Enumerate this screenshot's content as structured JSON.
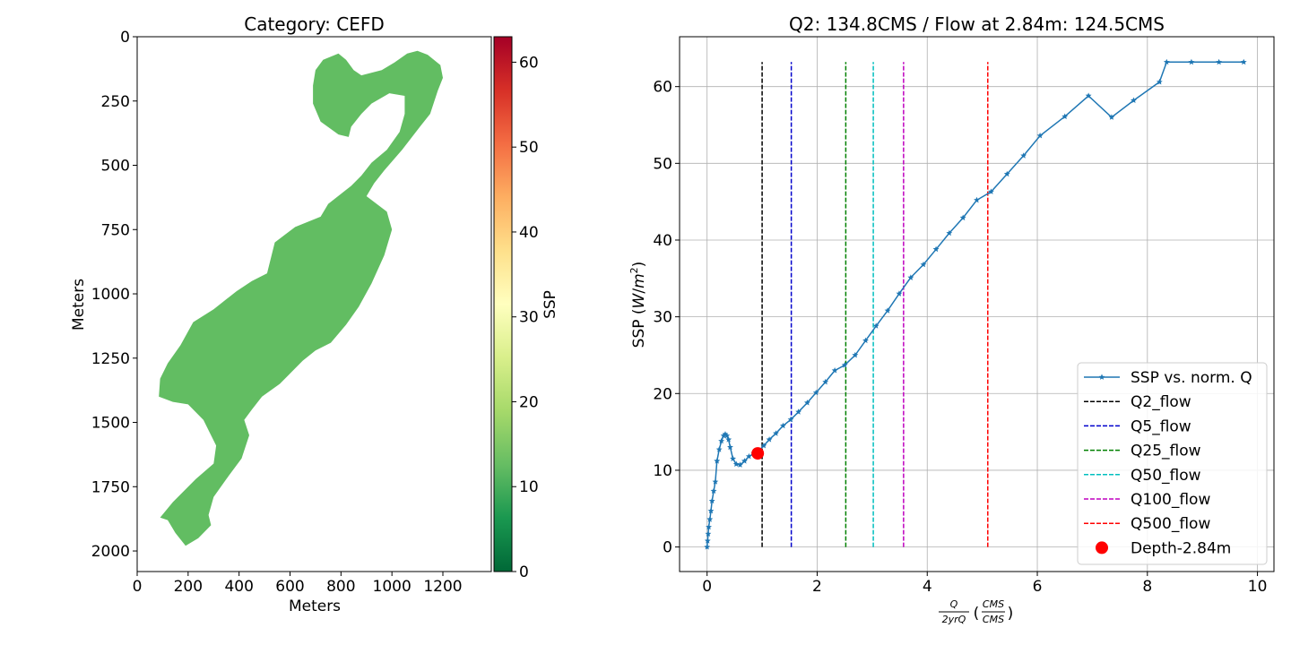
{
  "chart_data": [
    {
      "type": "heatmap",
      "title": "Category: CEFD",
      "xlabel": "Meters",
      "ylabel": "Meters",
      "xlim": [
        0,
        1390
      ],
      "ylim": [
        2080,
        0
      ],
      "xticks": [
        0,
        200,
        400,
        600,
        800,
        1000,
        1200
      ],
      "yticks": [
        0,
        250,
        500,
        750,
        1000,
        1250,
        1500,
        1750,
        2000
      ],
      "fill_color": "#62bd62",
      "fill_value_approx": 12,
      "colorbar": {
        "label": "SSP",
        "range": [
          0,
          63
        ],
        "ticks": [
          0,
          10,
          20,
          30,
          40,
          50,
          60
        ],
        "colormap": "RdYlGn_r",
        "stops": [
          "#006837",
          "#1a9850",
          "#66bd63",
          "#a6d96a",
          "#d9ef8b",
          "#ffffbf",
          "#fee08b",
          "#fdae61",
          "#f46d43",
          "#d73027",
          "#a50026"
        ]
      },
      "region_outline": [
        [
          730,
          90
        ],
        [
          790,
          65
        ],
        [
          820,
          90
        ],
        [
          850,
          130
        ],
        [
          880,
          150
        ],
        [
          960,
          130
        ],
        [
          1010,
          100
        ],
        [
          1060,
          65
        ],
        [
          1100,
          55
        ],
        [
          1140,
          70
        ],
        [
          1190,
          110
        ],
        [
          1200,
          160
        ],
        [
          1180,
          210
        ],
        [
          1150,
          300
        ],
        [
          1110,
          350
        ],
        [
          1040,
          440
        ],
        [
          970,
          520
        ],
        [
          930,
          570
        ],
        [
          900,
          620
        ],
        [
          980,
          680
        ],
        [
          1000,
          750
        ],
        [
          970,
          850
        ],
        [
          920,
          960
        ],
        [
          870,
          1050
        ],
        [
          820,
          1120
        ],
        [
          760,
          1190
        ],
        [
          700,
          1220
        ],
        [
          650,
          1260
        ],
        [
          600,
          1310
        ],
        [
          560,
          1350
        ],
        [
          490,
          1400
        ],
        [
          450,
          1450
        ],
        [
          420,
          1490
        ],
        [
          440,
          1550
        ],
        [
          410,
          1640
        ],
        [
          350,
          1720
        ],
        [
          300,
          1790
        ],
        [
          280,
          1860
        ],
        [
          290,
          1900
        ],
        [
          240,
          1950
        ],
        [
          190,
          1980
        ],
        [
          150,
          1930
        ],
        [
          120,
          1880
        ],
        [
          90,
          1870
        ],
        [
          140,
          1810
        ],
        [
          230,
          1720
        ],
        [
          300,
          1660
        ],
        [
          310,
          1590
        ],
        [
          260,
          1490
        ],
        [
          200,
          1430
        ],
        [
          140,
          1420
        ],
        [
          85,
          1400
        ],
        [
          90,
          1330
        ],
        [
          120,
          1270
        ],
        [
          170,
          1200
        ],
        [
          220,
          1110
        ],
        [
          300,
          1060
        ],
        [
          390,
          990
        ],
        [
          450,
          950
        ],
        [
          510,
          920
        ],
        [
          540,
          800
        ],
        [
          580,
          770
        ],
        [
          620,
          740
        ],
        [
          720,
          700
        ],
        [
          750,
          650
        ],
        [
          840,
          580
        ],
        [
          880,
          540
        ],
        [
          920,
          490
        ],
        [
          980,
          440
        ],
        [
          1030,
          370
        ],
        [
          1050,
          300
        ],
        [
          1050,
          230
        ],
        [
          990,
          220
        ],
        [
          920,
          260
        ],
        [
          880,
          300
        ],
        [
          840,
          350
        ],
        [
          830,
          390
        ],
        [
          790,
          380
        ],
        [
          720,
          330
        ],
        [
          690,
          260
        ],
        [
          690,
          190
        ],
        [
          700,
          130
        ]
      ]
    },
    {
      "type": "line",
      "title": "Q2: 134.8CMS / Flow at 2.84m: 124.5CMS",
      "xlabel_text": [
        "Q",
        "2yrQ",
        "(",
        "CMS",
        "CMS",
        ")"
      ],
      "ylabel": "SSP (W/m²)",
      "ylabel_parts": [
        "SSP (",
        "W",
        "/",
        "m",
        "2",
        ")"
      ],
      "xlim": [
        -0.5,
        10.3
      ],
      "ylim": [
        -3.2,
        66.5
      ],
      "xticks": [
        0,
        2,
        4,
        6,
        8,
        10
      ],
      "yticks": [
        0,
        10,
        20,
        30,
        40,
        50,
        60
      ],
      "grid": true,
      "legend_placement": "lower-right",
      "series": [
        {
          "name": "SSP vs. norm. Q",
          "color": "#1f77b4",
          "marker": "star",
          "x": [
            0.0,
            0.01,
            0.02,
            0.03,
            0.05,
            0.07,
            0.09,
            0.12,
            0.15,
            0.18,
            0.22,
            0.26,
            0.3,
            0.33,
            0.36,
            0.39,
            0.42,
            0.47,
            0.53,
            0.6,
            0.68,
            0.76,
            0.85,
            0.93,
            1.03,
            1.13,
            1.25,
            1.38,
            1.52,
            1.66,
            1.82,
            1.98,
            2.15,
            2.32,
            2.5,
            2.69,
            2.88,
            3.07,
            3.28,
            3.49,
            3.7,
            3.93,
            4.16,
            4.4,
            4.65,
            4.9,
            5.16,
            5.45,
            5.75,
            6.05,
            6.5,
            6.93,
            7.35,
            7.75,
            8.22,
            8.35,
            8.8,
            9.3,
            9.75
          ],
          "y": [
            0.0,
            0.8,
            1.7,
            2.6,
            3.6,
            4.7,
            6.0,
            7.3,
            8.5,
            11.2,
            12.7,
            13.8,
            14.5,
            14.7,
            14.5,
            14.0,
            13.0,
            11.5,
            10.8,
            10.7,
            11.2,
            11.8,
            12.2,
            12.5,
            13.2,
            14.0,
            14.8,
            15.8,
            16.6,
            17.6,
            18.8,
            20.1,
            21.5,
            23.0,
            23.7,
            25.0,
            26.9,
            28.8,
            30.8,
            33.0,
            35.1,
            36.8,
            38.8,
            40.9,
            42.9,
            45.2,
            46.3,
            48.6,
            51.0,
            53.6,
            56.1,
            58.8,
            56.0,
            58.2,
            60.6,
            63.2,
            63.2,
            63.2,
            63.2
          ]
        }
      ],
      "vlines": [
        {
          "name": "Q2_flow",
          "x": 1.0,
          "color": "#000000"
        },
        {
          "name": "Q5_flow",
          "x": 1.53,
          "color": "#0000cc"
        },
        {
          "name": "Q25_flow",
          "x": 2.52,
          "color": "#008000"
        },
        {
          "name": "Q50_flow",
          "x": 3.02,
          "color": "#00bfbf"
        },
        {
          "name": "Q100_flow",
          "x": 3.57,
          "color": "#bf00bf"
        },
        {
          "name": "Q500_flow",
          "x": 5.1,
          "color": "#ff0000"
        }
      ],
      "vline_top": 63.2,
      "point": {
        "name": "Depth-2.84m",
        "x": 0.92,
        "y": 12.2,
        "color": "#ff0000"
      }
    }
  ]
}
